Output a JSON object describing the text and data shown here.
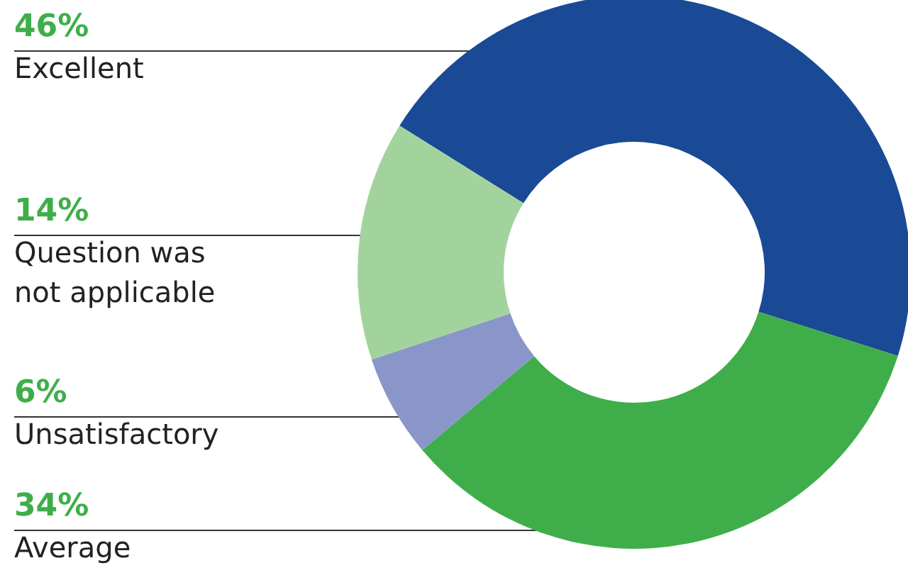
{
  "chart_data": {
    "type": "donut",
    "categories": [
      "Excellent",
      "Average",
      "Unsatisfactory",
      "Question was\nnot applicable"
    ],
    "values": [
      46,
      34,
      6,
      14
    ],
    "value_labels": [
      "46%",
      "34%",
      "6%",
      "14%"
    ],
    "colors": [
      "#1a4a96",
      "#3fae4a",
      "#8a96c9",
      "#a3d39c"
    ]
  }
}
